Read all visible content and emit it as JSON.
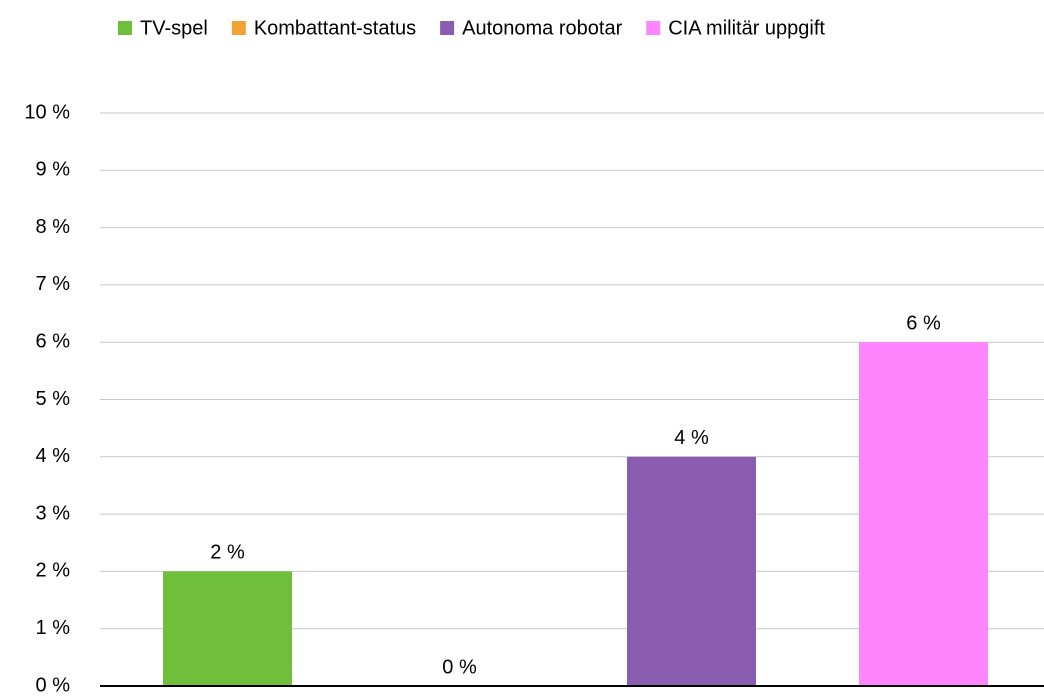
{
  "chart_data": {
    "type": "bar",
    "categories": [
      null
    ],
    "series": [
      {
        "name": "TV-spel",
        "color": "#70bf3a",
        "values": [
          2
        ],
        "value_labels": [
          "2 %"
        ]
      },
      {
        "name": "Kombattant-status",
        "color": "#f0a332",
        "values": [
          0
        ],
        "value_labels": [
          "0 %"
        ]
      },
      {
        "name": "Autonoma robotar",
        "color": "#8a5db0",
        "values": [
          4
        ],
        "value_labels": [
          "4 %"
        ]
      },
      {
        "name": "CIA militär uppgift",
        "color": "#ff85ff",
        "values": [
          6
        ],
        "value_labels": [
          "6 %"
        ]
      }
    ],
    "ylim": [
      0,
      10
    ],
    "yticks": [
      {
        "value": 0,
        "label": "0 %"
      },
      {
        "value": 1,
        "label": "1 %"
      },
      {
        "value": 2,
        "label": "2 %"
      },
      {
        "value": 3,
        "label": "3 %"
      },
      {
        "value": 4,
        "label": "4 %"
      },
      {
        "value": 5,
        "label": "5 %"
      },
      {
        "value": 6,
        "label": "6 %"
      },
      {
        "value": 7,
        "label": "7 %"
      },
      {
        "value": 8,
        "label": "8 %"
      },
      {
        "value": 9,
        "label": "9 %"
      },
      {
        "value": 10,
        "label": "10 %"
      }
    ],
    "grid": true,
    "legend": "top"
  }
}
